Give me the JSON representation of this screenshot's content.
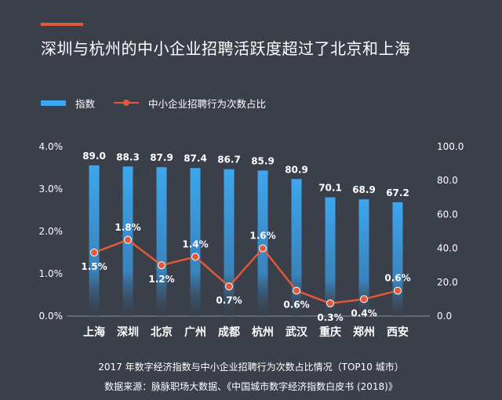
{
  "title": "深圳与杭州的中小企业招聘活跃度超过了北京和上海",
  "legend": {
    "bar_label": "指数",
    "line_label": "中小企业招聘行为次数占比"
  },
  "caption": "2017 年数字经济指数与中小企业招聘行为次数占比情况（TOP10 城市）",
  "source": "数据来源：脉脉职场大数据、《中国城市数字经济指数白皮书 (2018)》",
  "colors": {
    "background": "#3a3f4a",
    "bar": "#3da7ee",
    "line": "#e05a3a",
    "accent": "#e05a3a"
  },
  "chart_data": {
    "type": "bar+line",
    "categories": [
      "上海",
      "深圳",
      "北京",
      "广州",
      "成都",
      "杭州",
      "武汉",
      "重庆",
      "郑州",
      "西安"
    ],
    "series": [
      {
        "name": "指数",
        "type": "bar",
        "axis": "right",
        "values": [
          89.0,
          88.3,
          87.9,
          87.4,
          86.7,
          85.9,
          80.9,
          70.1,
          68.9,
          67.2
        ],
        "labels": [
          "89.0",
          "88.3",
          "87.9",
          "87.4",
          "86.7",
          "85.9",
          "80.9",
          "70.1",
          "68.9",
          "67.2"
        ]
      },
      {
        "name": "中小企业招聘行为次数占比",
        "type": "line",
        "axis": "left",
        "values": [
          1.5,
          1.8,
          1.2,
          1.4,
          0.7,
          1.6,
          0.6,
          0.3,
          0.4,
          0.6
        ],
        "labels": [
          "1.5%",
          "1.8%",
          "1.2%",
          "1.4%",
          "0.7%",
          "1.6%",
          "0.6%",
          "0.3%",
          "0.4%",
          "0.6%"
        ]
      }
    ],
    "y_left": {
      "range": [
        0,
        4
      ],
      "ticks": [
        "0.0%",
        "1.0%",
        "2.0%",
        "3.0%",
        "4.0%"
      ]
    },
    "y_right": {
      "range": [
        0,
        100
      ],
      "ticks": [
        "0.0",
        "20.0",
        "40.0",
        "60.0",
        "80.0",
        "100.0"
      ]
    },
    "grid": false
  }
}
